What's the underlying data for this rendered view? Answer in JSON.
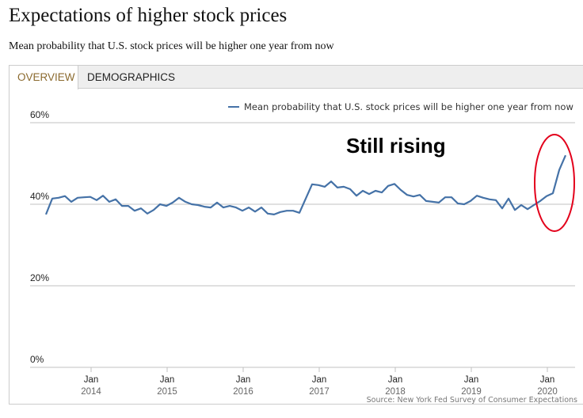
{
  "header": {
    "title": "Expectations of higher stock prices",
    "subtitle": "Mean probability that U.S. stock prices will be higher one year from now"
  },
  "tabs": [
    {
      "label": "OVERVIEW",
      "active": true
    },
    {
      "label": "DEMOGRAPHICS",
      "active": false
    }
  ],
  "colors": {
    "series": "#4572a7",
    "annotation_ellipse": "#e3001b",
    "active_tab": "#8b6a2e"
  },
  "chart_data": {
    "type": "line",
    "title": "Expectations of higher stock prices",
    "subtitle": "Mean probability that U.S. stock prices will be higher one year from now",
    "xlabel": "",
    "ylabel": "",
    "ylim": [
      0,
      60
    ],
    "y_ticks": [
      "0%",
      "20%",
      "40%",
      "60%"
    ],
    "y_tick_values": [
      0,
      20,
      40,
      60
    ],
    "x_ticks": [
      {
        "month": "Jan",
        "year": "2014",
        "index": 7
      },
      {
        "month": "Jan",
        "year": "2015",
        "index": 19
      },
      {
        "month": "Jan",
        "year": "2016",
        "index": 31
      },
      {
        "month": "Jan",
        "year": "2017",
        "index": 43
      },
      {
        "month": "Jan",
        "year": "2018",
        "index": 55
      },
      {
        "month": "Jan",
        "year": "2019",
        "index": 67
      },
      {
        "month": "Jan",
        "year": "2020",
        "index": 79
      }
    ],
    "grid": true,
    "legend": {
      "position": "top-right",
      "entries": [
        "Mean probability that U.S. stock prices will be higher one year from now"
      ]
    },
    "x": [
      "2013-06",
      "2013-07",
      "2013-08",
      "2013-09",
      "2013-10",
      "2013-11",
      "2013-12",
      "2014-01",
      "2014-02",
      "2014-03",
      "2014-04",
      "2014-05",
      "2014-06",
      "2014-07",
      "2014-08",
      "2014-09",
      "2014-10",
      "2014-11",
      "2014-12",
      "2015-01",
      "2015-02",
      "2015-03",
      "2015-04",
      "2015-05",
      "2015-06",
      "2015-07",
      "2015-08",
      "2015-09",
      "2015-10",
      "2015-11",
      "2015-12",
      "2016-01",
      "2016-02",
      "2016-03",
      "2016-04",
      "2016-05",
      "2016-06",
      "2016-07",
      "2016-08",
      "2016-09",
      "2016-10",
      "2016-11",
      "2016-12",
      "2017-01",
      "2017-02",
      "2017-03",
      "2017-04",
      "2017-05",
      "2017-06",
      "2017-07",
      "2017-08",
      "2017-09",
      "2017-10",
      "2017-11",
      "2017-12",
      "2018-01",
      "2018-02",
      "2018-03",
      "2018-04",
      "2018-05",
      "2018-06",
      "2018-07",
      "2018-08",
      "2018-09",
      "2018-10",
      "2018-11",
      "2018-12",
      "2019-01",
      "2019-02",
      "2019-03",
      "2019-04",
      "2019-05",
      "2019-06",
      "2019-07",
      "2019-08",
      "2019-09",
      "2019-10",
      "2019-11",
      "2019-12",
      "2020-01",
      "2020-02",
      "2020-03",
      "2020-04"
    ],
    "series": [
      {
        "name": "Mean probability that U.S. stock prices will be higher one year from now",
        "values": [
          37.5,
          41.4,
          41.6,
          42.0,
          40.6,
          41.6,
          41.7,
          41.8,
          41.0,
          42.1,
          40.6,
          41.2,
          39.6,
          39.6,
          38.4,
          39.0,
          37.7,
          38.6,
          40.0,
          39.6,
          40.4,
          41.6,
          40.6,
          40.0,
          39.8,
          39.4,
          39.2,
          40.4,
          39.2,
          39.6,
          39.2,
          38.4,
          39.2,
          38.2,
          39.2,
          37.7,
          37.5,
          38.1,
          38.4,
          38.4,
          37.9,
          41.4,
          44.9,
          44.7,
          44.3,
          45.6,
          44.1,
          44.3,
          43.7,
          42.1,
          43.3,
          42.5,
          43.3,
          42.9,
          44.5,
          45.0,
          43.5,
          42.3,
          41.9,
          42.3,
          40.8,
          40.6,
          40.4,
          41.7,
          41.7,
          40.2,
          40.0,
          40.8,
          42.1,
          41.6,
          41.2,
          41.0,
          39.0,
          41.4,
          38.6,
          39.8,
          38.8,
          39.8,
          40.8,
          42.0,
          42.7,
          48.4,
          52.0
        ]
      }
    ],
    "annotations": [
      {
        "text": "Still rising",
        "type": "label"
      },
      {
        "type": "ellipse",
        "target": "last three points (2020)"
      }
    ],
    "source": "Source: New York Fed Survey of Consumer Expectations"
  }
}
